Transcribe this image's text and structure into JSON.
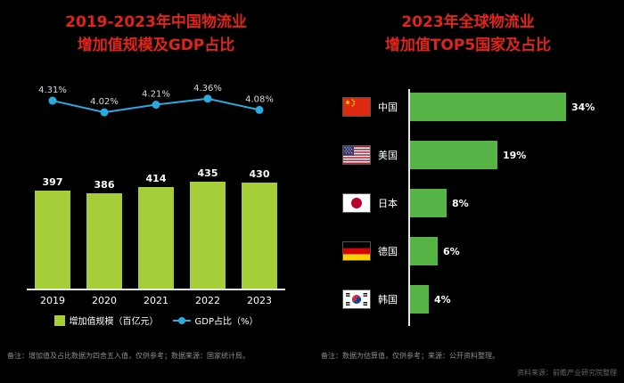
{
  "left_panel": {
    "title_line1": "2019-2023年中国物流业",
    "title_line2": "增加值规模及GDP占比",
    "note": "备注：增加值及占比数据为四舍五入值，仅供参考；数据来源：国家统计局。"
  },
  "right_panel": {
    "title_line1": "2023年全球物流业",
    "title_line2": "增加值TOP5国家及占比",
    "note": "备注：数据为估算值，仅供参考；来源：公开资料整理。"
  },
  "watermark": "资料来源：前瞻产业研究院整理",
  "colors": {
    "title_red": "#e2231a",
    "bar_green": "#a6ce39",
    "line_blue": "#29abe2",
    "hbar_green": "#56b447"
  },
  "chart_data": [
    {
      "type": "bar",
      "title": "2019-2023年中国物流业增加值规模及GDP占比",
      "categories": [
        "2019",
        "2020",
        "2021",
        "2022",
        "2023"
      ],
      "series": [
        {
          "name": "增加值规模（百亿元）",
          "kind": "bar",
          "values": [
            397,
            386,
            414,
            435,
            430
          ],
          "labels": [
            "397",
            "386",
            "414",
            "435",
            "430"
          ],
          "color": "#a6ce39"
        },
        {
          "name": "GDP占比（%）",
          "kind": "line",
          "values": [
            4.31,
            4.02,
            4.21,
            4.36,
            4.08
          ],
          "labels": [
            "4.31%",
            "4.02%",
            "4.21%",
            "4.36%",
            "4.08%"
          ],
          "color": "#29abe2"
        }
      ],
      "ylim": [
        0,
        500
      ],
      "legend_position": "bottom",
      "grid": false
    },
    {
      "type": "bar",
      "orientation": "horizontal",
      "title": "2023年全球物流业增加值TOP5国家及占比",
      "categories": [
        "中国",
        "美国",
        "日本",
        "德国",
        "韩国"
      ],
      "values": [
        34,
        19,
        8,
        6,
        4
      ],
      "labels": [
        "34%",
        "19%",
        "8%",
        "6%",
        "4%"
      ],
      "xlim": [
        0,
        40
      ],
      "grid": false
    }
  ]
}
